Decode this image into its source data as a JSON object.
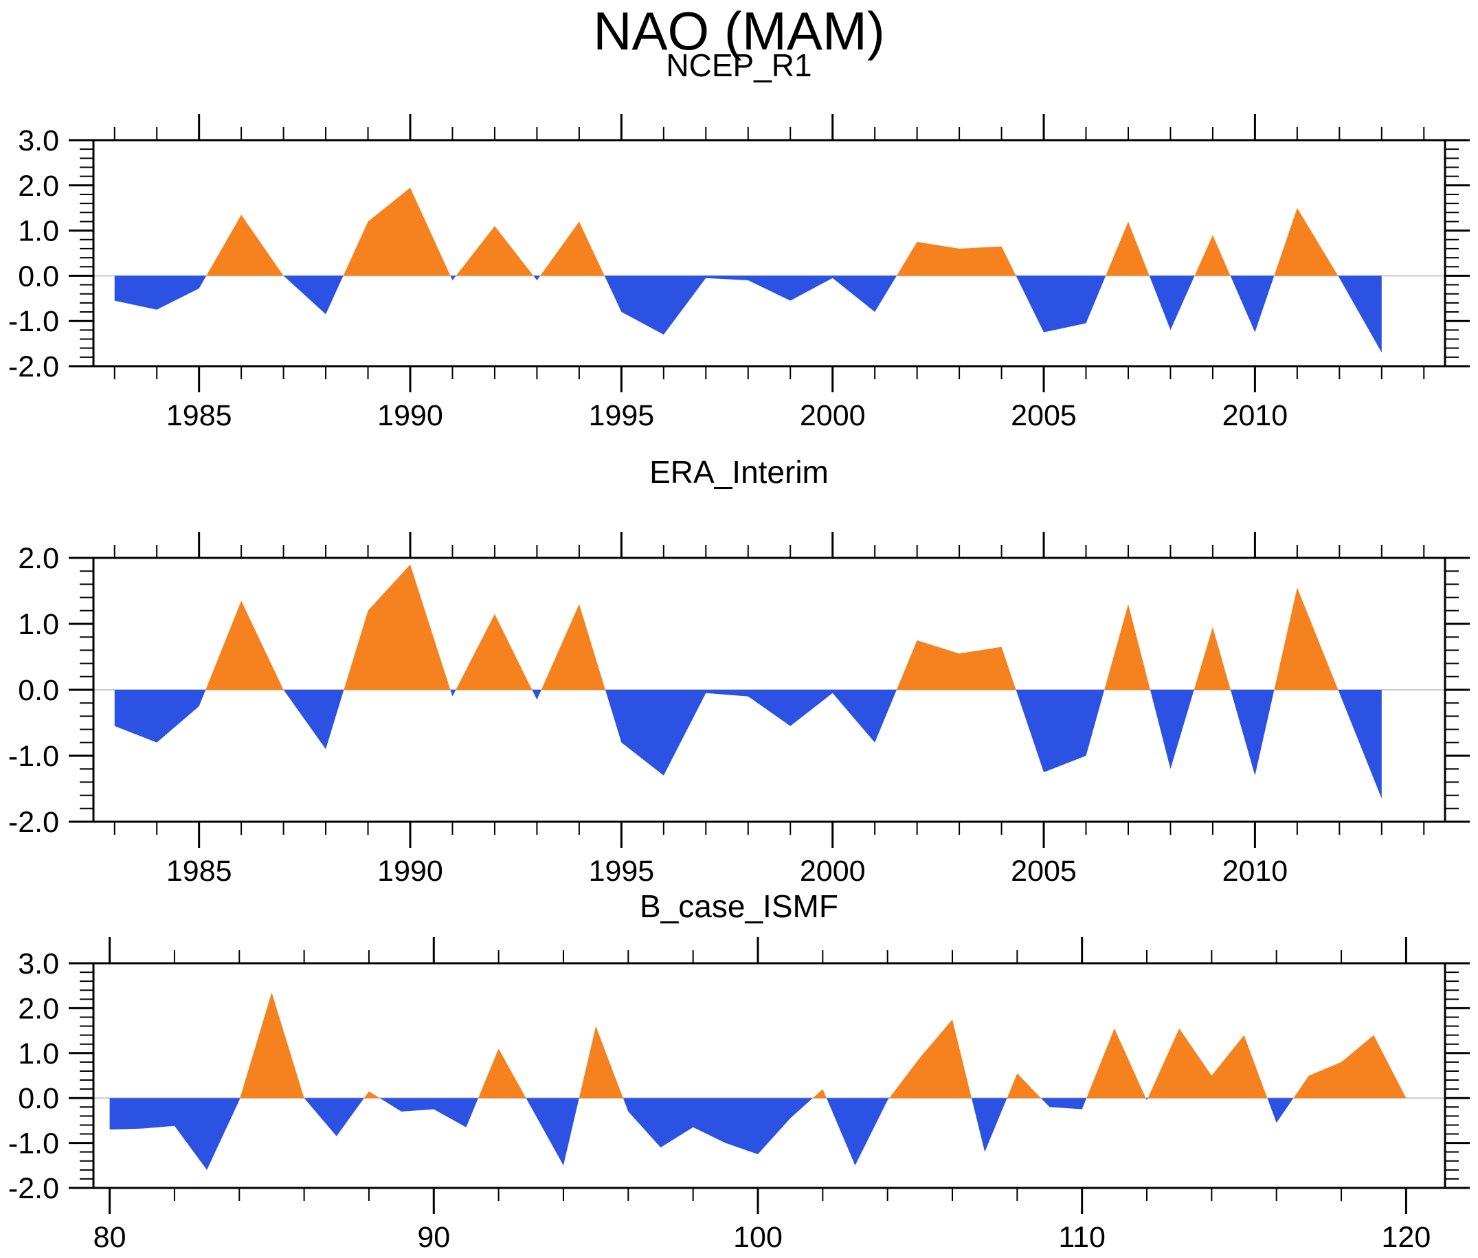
{
  "title": "NAO (MAM)",
  "colors": {
    "positive": "#F5821F",
    "negative": "#2B52E2",
    "zero_line": "#C9C9C9",
    "axis": "#000000",
    "background": "#FFFFFF"
  },
  "chart_data": [
    {
      "type": "area",
      "title": "NCEP_R1",
      "x": [
        1983,
        1984,
        1985,
        1986,
        1987,
        1988,
        1989,
        1990,
        1991,
        1992,
        1993,
        1994,
        1995,
        1996,
        1997,
        1998,
        1999,
        2000,
        2001,
        2002,
        2003,
        2004,
        2005,
        2006,
        2007,
        2008,
        2009,
        2010,
        2011,
        2012,
        2013
      ],
      "values": [
        -0.55,
        -0.75,
        -0.28,
        1.35,
        0.0,
        -0.85,
        1.2,
        1.95,
        -0.1,
        1.1,
        -0.1,
        1.2,
        -0.8,
        -1.3,
        -0.05,
        -0.1,
        -0.55,
        -0.05,
        -0.8,
        0.75,
        0.6,
        0.65,
        -1.25,
        -1.05,
        1.2,
        -1.2,
        0.9,
        -1.25,
        1.5,
        -0.05,
        -1.7
      ],
      "xlim": [
        1982.5,
        2014.5
      ],
      "ylim": [
        -2.0,
        3.0
      ],
      "x_major_ticks": [
        1985,
        1990,
        1995,
        2000,
        2005,
        2010
      ],
      "x_tick_labels": [
        "1985",
        "1990",
        "1995",
        "2000",
        "2005",
        "2010"
      ],
      "x_minor_step": 1,
      "y_major_ticks": [
        3,
        2,
        1,
        0,
        -1,
        -2
      ],
      "y_tick_labels": [
        "3.0",
        "2.0",
        "1.0",
        "0.0",
        "-1.0",
        "-2.0"
      ],
      "y_minor_step": 0.2,
      "grid": "zero-line-only",
      "legend": "none"
    },
    {
      "type": "area",
      "title": "ERA_Interim",
      "x": [
        1983,
        1984,
        1985,
        1986,
        1987,
        1988,
        1989,
        1990,
        1991,
        1992,
        1993,
        1994,
        1995,
        1996,
        1997,
        1998,
        1999,
        2000,
        2001,
        2002,
        2003,
        2004,
        2005,
        2006,
        2007,
        2008,
        2009,
        2010,
        2011,
        2012,
        2013
      ],
      "values": [
        -0.55,
        -0.8,
        -0.25,
        1.35,
        0.0,
        -0.9,
        1.2,
        1.9,
        -0.1,
        1.15,
        -0.15,
        1.3,
        -0.8,
        -1.3,
        -0.05,
        -0.1,
        -0.55,
        -0.05,
        -0.8,
        0.75,
        0.55,
        0.65,
        -1.25,
        -1.0,
        1.3,
        -1.2,
        0.95,
        -1.3,
        1.55,
        -0.05,
        -1.65
      ],
      "xlim": [
        1982.5,
        2014.5
      ],
      "ylim": [
        -2.0,
        2.0
      ],
      "x_major_ticks": [
        1985,
        1990,
        1995,
        2000,
        2005,
        2010
      ],
      "x_tick_labels": [
        "1985",
        "1990",
        "1995",
        "2000",
        "2005",
        "2010"
      ],
      "x_minor_step": 1,
      "y_major_ticks": [
        2,
        1,
        0,
        -1,
        -2
      ],
      "y_tick_labels": [
        "2.0",
        "1.0",
        "0.0",
        "-1.0",
        "-2.0"
      ],
      "y_minor_step": 0.2,
      "grid": "zero-line-only",
      "legend": "none"
    },
    {
      "type": "area",
      "title": "B_case_ISMF",
      "x": [
        80,
        81,
        82,
        83,
        84,
        85,
        86,
        87,
        88,
        89,
        90,
        91,
        92,
        93,
        94,
        95,
        96,
        97,
        98,
        99,
        100,
        101,
        102,
        103,
        104,
        105,
        106,
        107,
        108,
        109,
        110,
        111,
        112,
        113,
        114,
        115,
        116,
        117,
        118,
        119,
        120
      ],
      "values": [
        -0.7,
        -0.68,
        -0.62,
        -1.6,
        -0.05,
        2.35,
        0.0,
        -0.85,
        0.15,
        -0.3,
        -0.25,
        -0.65,
        1.1,
        -0.2,
        -1.5,
        1.6,
        -0.3,
        -1.1,
        -0.65,
        -1.0,
        -1.25,
        -0.45,
        0.2,
        -1.5,
        -0.05,
        0.9,
        1.75,
        -1.2,
        0.55,
        -0.2,
        -0.25,
        1.55,
        -0.05,
        1.55,
        0.5,
        1.4,
        -0.55,
        0.5,
        0.8,
        1.4,
        0.0
      ],
      "xlim": [
        79.5,
        121.2
      ],
      "ylim": [
        -2.0,
        3.0
      ],
      "x_major_ticks": [
        80,
        90,
        100,
        110,
        120
      ],
      "x_tick_labels": [
        "80",
        "90",
        "100",
        "110",
        "120"
      ],
      "x_minor_step": 2,
      "y_major_ticks": [
        3,
        2,
        1,
        0,
        -1,
        -2
      ],
      "y_tick_labels": [
        "3.0",
        "2.0",
        "1.0",
        "0.0",
        "-1.0",
        "-2.0"
      ],
      "y_minor_step": 0.2,
      "grid": "zero-line-only",
      "legend": "none"
    }
  ]
}
